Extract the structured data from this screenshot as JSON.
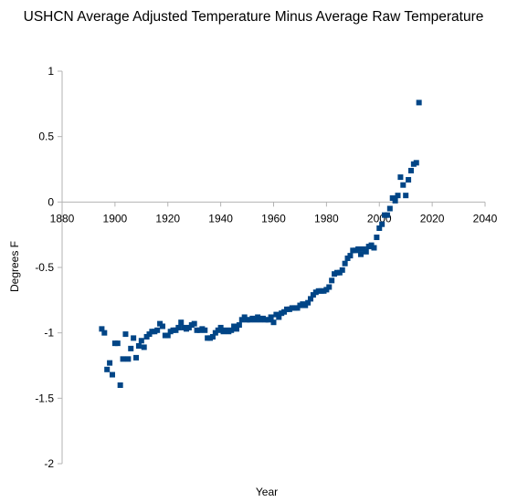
{
  "chart_data": {
    "type": "scatter",
    "title": "USHCN Average Adjusted Temperature Minus Average Raw Temperature",
    "xlabel": "Year",
    "ylabel": "Degrees F",
    "xlim": [
      1880,
      2040
    ],
    "ylim": [
      -2,
      1
    ],
    "x_ticks": [
      1880,
      1900,
      1920,
      1940,
      1960,
      1980,
      2000,
      2020,
      2040
    ],
    "y_ticks": [
      1,
      0.5,
      0,
      -0.5,
      -1,
      -1.5,
      -2
    ],
    "y_tick_labels": [
      "1",
      "0.5",
      "0",
      "-0.5",
      "-1",
      "-1.5",
      "-2"
    ],
    "grid": false,
    "legend": "none",
    "marker_color": "#004586",
    "series": [
      {
        "x": [
          1895,
          1896,
          1897,
          1898,
          1899,
          1900,
          1901,
          1902,
          1903,
          1904,
          1905,
          1906,
          1907,
          1908,
          1909,
          1910,
          1911,
          1912,
          1913,
          1914,
          1915,
          1916,
          1917,
          1918,
          1919,
          1920,
          1921,
          1922,
          1923,
          1924,
          1925,
          1926,
          1927,
          1928,
          1929,
          1930,
          1931,
          1932,
          1933,
          1934,
          1935,
          1936,
          1937,
          1938,
          1939,
          1940,
          1941,
          1942,
          1943,
          1944,
          1945,
          1946,
          1947,
          1948,
          1949,
          1950,
          1951,
          1952,
          1953,
          1954,
          1955,
          1956,
          1957,
          1958,
          1959,
          1960,
          1961,
          1962,
          1963,
          1964,
          1965,
          1966,
          1967,
          1968,
          1969,
          1970,
          1971,
          1972,
          1973,
          1974,
          1975,
          1976,
          1977,
          1978,
          1979,
          1980,
          1981,
          1982,
          1983,
          1984,
          1985,
          1986,
          1987,
          1988,
          1989,
          1990,
          1991,
          1992,
          1993,
          1994,
          1995,
          1996,
          1997,
          1998,
          1999,
          2000,
          2001,
          2002,
          2003,
          2004,
          2005,
          2006,
          2007,
          2008,
          2009,
          2010,
          2011,
          2012,
          2013,
          2014,
          2015
        ],
        "y": [
          -0.97,
          -1.0,
          -1.28,
          -1.23,
          -1.32,
          -1.08,
          -1.08,
          -1.4,
          -1.2,
          -1.01,
          -1.2,
          -1.12,
          -1.04,
          -1.19,
          -1.1,
          -1.06,
          -1.11,
          -1.03,
          -1.01,
          -0.99,
          -0.99,
          -0.98,
          -0.93,
          -0.95,
          -1.02,
          -1.02,
          -0.99,
          -0.98,
          -0.98,
          -0.96,
          -0.92,
          -0.96,
          -0.97,
          -0.96,
          -0.94,
          -0.93,
          -0.98,
          -0.98,
          -0.97,
          -0.98,
          -1.04,
          -1.04,
          -1.03,
          -1.0,
          -0.98,
          -0.96,
          -0.99,
          -0.98,
          -0.99,
          -0.98,
          -0.95,
          -0.97,
          -0.94,
          -0.9,
          -0.88,
          -0.9,
          -0.9,
          -0.89,
          -0.9,
          -0.88,
          -0.9,
          -0.89,
          -0.9,
          -0.9,
          -0.88,
          -0.92,
          -0.86,
          -0.88,
          -0.85,
          -0.84,
          -0.82,
          -0.82,
          -0.81,
          -0.81,
          -0.81,
          -0.79,
          -0.78,
          -0.79,
          -0.77,
          -0.74,
          -0.71,
          -0.69,
          -0.68,
          -0.68,
          -0.68,
          -0.67,
          -0.65,
          -0.6,
          -0.55,
          -0.54,
          -0.54,
          -0.52,
          -0.47,
          -0.43,
          -0.41,
          -0.37,
          -0.37,
          -0.36,
          -0.4,
          -0.36,
          -0.38,
          -0.34,
          -0.33,
          -0.35,
          -0.27,
          -0.2,
          -0.17,
          -0.1,
          -0.1,
          -0.05,
          0.03,
          0.01,
          0.05,
          0.19,
          0.13,
          0.05,
          0.17,
          0.24,
          0.29,
          0.3,
          0.76
        ]
      }
    ]
  }
}
